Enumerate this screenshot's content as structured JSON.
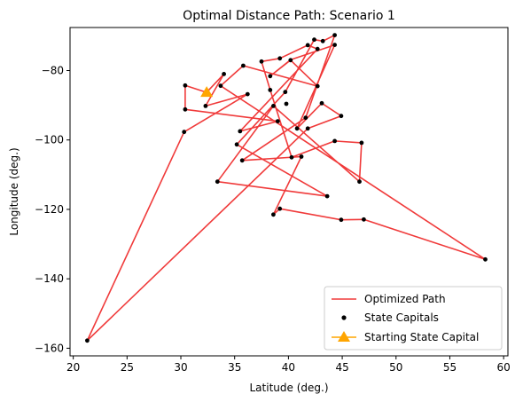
{
  "chart_data": {
    "type": "line",
    "title": "Optimal Distance Path: Scenario 1",
    "xlabel": "Latitude (deg.)",
    "ylabel": "Longitude (deg.)",
    "xlim": [
      19.7,
      60.4
    ],
    "ylim": [
      -162.2,
      -67.6
    ],
    "xticks": [
      20,
      25,
      30,
      35,
      40,
      45,
      50,
      55,
      60
    ],
    "yticks": [
      -160,
      -140,
      -120,
      -100,
      -80
    ],
    "grid": false,
    "legend_position": "lower-right",
    "colors": {
      "path": "#f03a3a",
      "capitals": "#000000",
      "start": "#ffa500"
    },
    "series": [
      {
        "name": "Optimized Path",
        "kind": "line",
        "points": [
          [
            32.4,
            -86.3
          ],
          [
            30.4,
            -84.3
          ],
          [
            30.4,
            -91.2
          ],
          [
            39.0,
            -94.6
          ],
          [
            35.5,
            -97.5
          ],
          [
            42.7,
            -73.8
          ],
          [
            41.8,
            -72.7
          ],
          [
            39.2,
            -76.5
          ],
          [
            37.5,
            -77.4
          ],
          [
            38.3,
            -85.6
          ],
          [
            40.3,
            -105.0
          ],
          [
            44.3,
            -100.3
          ],
          [
            46.8,
            -100.8
          ],
          [
            46.6,
            -112.0
          ],
          [
            38.6,
            -90.2
          ],
          [
            33.4,
            -112.0
          ],
          [
            43.6,
            -116.2
          ],
          [
            35.2,
            -101.3
          ],
          [
            39.7,
            -86.2
          ],
          [
            42.4,
            -71.1
          ],
          [
            43.2,
            -71.5
          ],
          [
            44.3,
            -69.8
          ],
          [
            41.6,
            -93.6
          ],
          [
            35.7,
            -105.9
          ],
          [
            41.2,
            -104.8
          ],
          [
            38.6,
            -121.5
          ],
          [
            39.2,
            -119.8
          ],
          [
            44.9,
            -123.0
          ],
          [
            47.0,
            -122.9
          ],
          [
            58.3,
            -134.4
          ],
          [
            33.7,
            -84.4
          ],
          [
            35.8,
            -78.6
          ],
          [
            42.7,
            -84.5
          ],
          [
            40.2,
            -77.0
          ],
          [
            38.3,
            -81.6
          ],
          [
            40.2,
            -76.9
          ],
          [
            44.3,
            -72.6
          ],
          [
            40.8,
            -96.7
          ],
          [
            43.1,
            -89.4
          ],
          [
            44.9,
            -93.1
          ],
          [
            41.8,
            -96.7
          ],
          [
            21.3,
            -157.8
          ],
          [
            30.3,
            -97.7
          ],
          [
            36.2,
            -86.8
          ],
          [
            32.3,
            -90.2
          ],
          [
            34.0,
            -81.0
          ],
          [
            32.4,
            -86.3
          ]
        ]
      },
      {
        "name": "State Capitals",
        "kind": "scatter",
        "points": [
          [
            21.3,
            -157.8
          ],
          [
            30.3,
            -97.7
          ],
          [
            30.4,
            -84.3
          ],
          [
            30.4,
            -91.2
          ],
          [
            32.3,
            -90.2
          ],
          [
            33.4,
            -112.0
          ],
          [
            33.7,
            -84.4
          ],
          [
            34.0,
            -81.0
          ],
          [
            35.2,
            -101.3
          ],
          [
            35.5,
            -97.5
          ],
          [
            35.7,
            -105.9
          ],
          [
            35.8,
            -78.6
          ],
          [
            36.2,
            -86.8
          ],
          [
            37.5,
            -77.4
          ],
          [
            38.3,
            -85.6
          ],
          [
            38.3,
            -81.6
          ],
          [
            38.6,
            -90.2
          ],
          [
            38.6,
            -121.5
          ],
          [
            39.0,
            -94.6
          ],
          [
            39.2,
            -76.5
          ],
          [
            39.2,
            -119.8
          ],
          [
            39.7,
            -86.2
          ],
          [
            39.8,
            -89.6
          ],
          [
            40.2,
            -77.0
          ],
          [
            40.3,
            -105.0
          ],
          [
            40.8,
            -96.7
          ],
          [
            41.2,
            -104.8
          ],
          [
            41.6,
            -93.6
          ],
          [
            41.8,
            -72.7
          ],
          [
            41.8,
            -96.7
          ],
          [
            42.4,
            -71.1
          ],
          [
            42.7,
            -73.8
          ],
          [
            42.7,
            -84.5
          ],
          [
            43.1,
            -89.4
          ],
          [
            43.2,
            -71.5
          ],
          [
            43.6,
            -116.2
          ],
          [
            44.3,
            -69.8
          ],
          [
            44.3,
            -72.6
          ],
          [
            44.3,
            -100.3
          ],
          [
            44.9,
            -93.1
          ],
          [
            44.9,
            -123.0
          ],
          [
            46.6,
            -112.0
          ],
          [
            46.8,
            -100.8
          ],
          [
            47.0,
            -122.9
          ],
          [
            58.3,
            -134.4
          ]
        ]
      },
      {
        "name": "Starting State Capital",
        "kind": "marker",
        "points": [
          [
            32.4,
            -86.3
          ]
        ]
      }
    ]
  }
}
